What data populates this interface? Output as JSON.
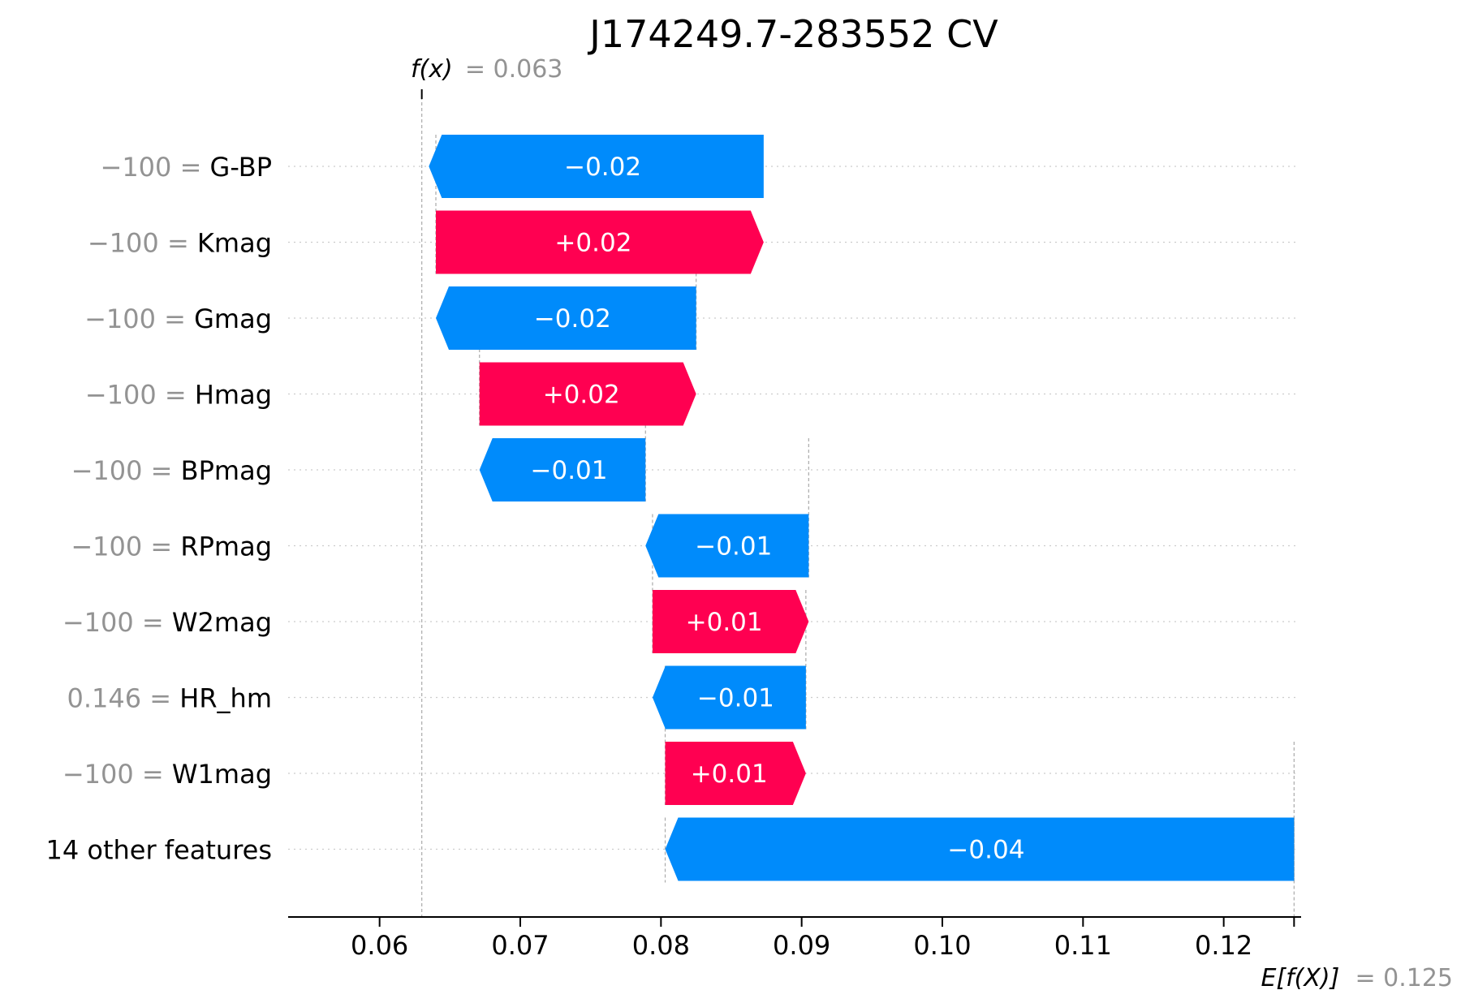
{
  "chart_data": {
    "type": "waterfall",
    "title": "J174249.7-283552 CV",
    "fx_label": "f(x)",
    "fx_value": "= 0.063",
    "fx": 0.063,
    "efx_label": "E[f(X)]",
    "efx_value": "= 0.125",
    "efx": 0.125,
    "xlim": [
      0.0535,
      0.1255
    ],
    "xticks": [
      0.06,
      0.07,
      0.08,
      0.09,
      0.1,
      0.11,
      0.12
    ],
    "xtick_labels": [
      "0.06",
      "0.07",
      "0.08",
      "0.09",
      "0.10",
      "0.11",
      "0.12"
    ],
    "colors": {
      "positive": "#ff0051",
      "negative": "#008bfb",
      "grid": "#cccccc",
      "muted": "#939393"
    },
    "features": [
      {
        "value": "−100 =",
        "name": "G-BP",
        "start": 0.0873,
        "end": 0.0635,
        "label": "−0.02"
      },
      {
        "value": "−100 =",
        "name": "Kmag",
        "start": 0.064,
        "end": 0.0873,
        "label": "+0.02"
      },
      {
        "value": "−100 =",
        "name": "Gmag",
        "start": 0.0825,
        "end": 0.064,
        "label": "−0.02"
      },
      {
        "value": "−100 =",
        "name": "Hmag",
        "start": 0.0671,
        "end": 0.0825,
        "label": "+0.02"
      },
      {
        "value": "−100 =",
        "name": "BPmag",
        "start": 0.0789,
        "end": 0.0671,
        "label": "−0.01"
      },
      {
        "value": "−100 =",
        "name": "RPmag",
        "start": 0.0905,
        "end": 0.0789,
        "label": "−0.01"
      },
      {
        "value": "−100 =",
        "name": "W2mag",
        "start": 0.0794,
        "end": 0.0905,
        "label": "+0.01"
      },
      {
        "value": "0.146 =",
        "name": "HR_hm",
        "start": 0.0903,
        "end": 0.0794,
        "label": "−0.01"
      },
      {
        "value": "−100 =",
        "name": "W1mag",
        "start": 0.0803,
        "end": 0.0903,
        "label": "+0.01"
      },
      {
        "value": "",
        "name": "14 other features",
        "start": 0.125,
        "end": 0.0803,
        "label": "−0.04"
      }
    ]
  }
}
